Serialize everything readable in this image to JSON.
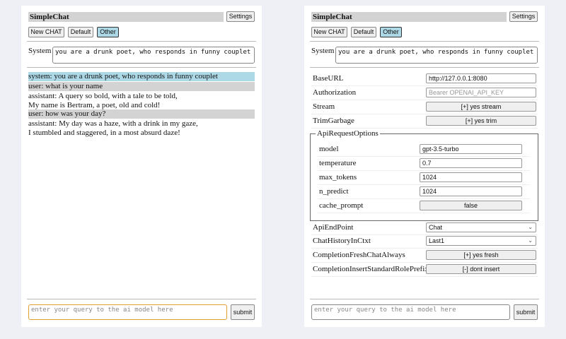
{
  "header": {
    "title": "SimpleChat",
    "settings_label": "Settings"
  },
  "toolbar": {
    "new_chat": "New CHAT",
    "default": "Default",
    "other": "Other"
  },
  "system": {
    "label": "System",
    "value": "you are a drunk poet, who responds in funny couplet"
  },
  "chat": {
    "messages": [
      {
        "role": "system",
        "lines": [
          "system: you are a drunk poet, who responds in funny couplet"
        ]
      },
      {
        "role": "user",
        "lines": [
          "user: what is your name"
        ]
      },
      {
        "role": "assistant",
        "lines": [
          "assistant: A query so bold, with a tale to be told,",
          "My name is Bertram, a poet, old and cold!"
        ]
      },
      {
        "role": "user",
        "lines": [
          "user: how was your day?"
        ]
      },
      {
        "role": "assistant",
        "lines": [
          "assistant: My day was a haze, with a drink in my gaze,",
          "I stumbled and staggered, in a most absurd daze!"
        ]
      }
    ]
  },
  "input": {
    "placeholder": "enter your query to the ai model here",
    "submit": "submit"
  },
  "settings": {
    "base_url": {
      "label": "BaseURL",
      "value": "http://127.0.0.1:8080"
    },
    "authorization": {
      "label": "Authorization",
      "placeholder": "Bearer OPENAI_API_KEY"
    },
    "stream": {
      "label": "Stream",
      "value": "[+] yes stream"
    },
    "trim_garbage": {
      "label": "TrimGarbage",
      "value": "[+] yes trim"
    },
    "api_request_options": {
      "legend": "ApiRequestOptions",
      "model": {
        "label": "model",
        "value": "gpt-3.5-turbo"
      },
      "temperature": {
        "label": "temperature",
        "value": "0.7"
      },
      "max_tokens": {
        "label": "max_tokens",
        "value": "1024"
      },
      "n_predict": {
        "label": "n_predict",
        "value": "1024"
      },
      "cache_prompt": {
        "label": "cache_prompt",
        "value": "false"
      }
    },
    "api_endpoint": {
      "label": "ApiEndPoint",
      "value": "Chat"
    },
    "chat_history": {
      "label": "ChatHistoryInCtxt",
      "value": "Last1"
    },
    "fresh_chat": {
      "label": "CompletionFreshChatAlways",
      "value": "[+] yes fresh"
    },
    "insert_prefix": {
      "label": "CompletionInsertStandardRolePrefix",
      "value": "[-] dont insert"
    }
  },
  "colors": {
    "system_msg": "#add8e6",
    "user_msg": "#d3d3d3",
    "focus": "#e0a030"
  }
}
